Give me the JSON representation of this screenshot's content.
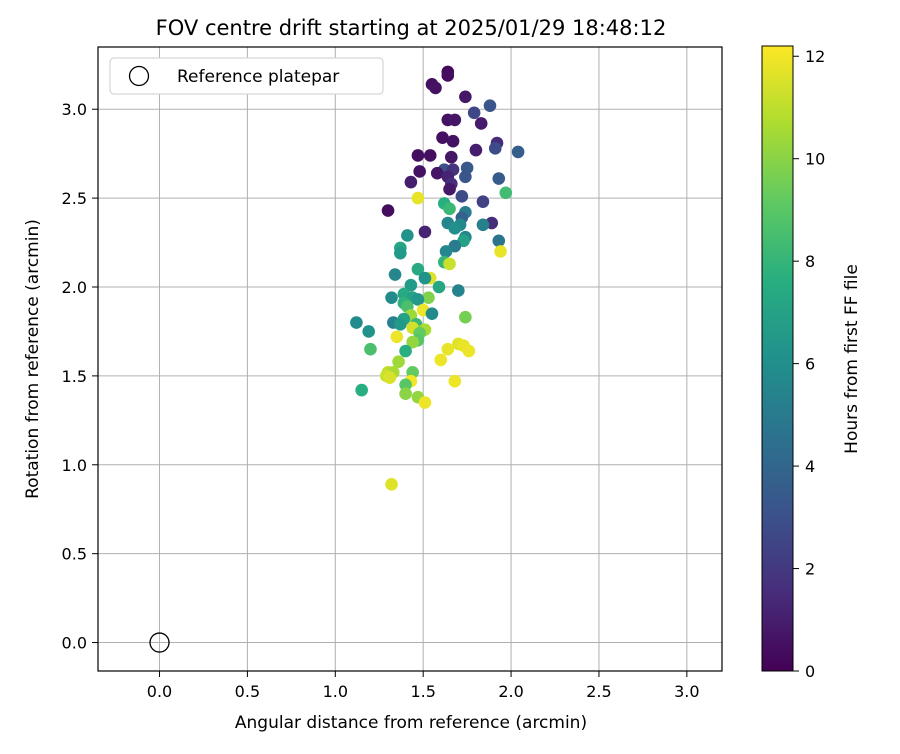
{
  "chart_data": {
    "type": "scatter",
    "title": "FOV centre drift starting at 2025/01/29 18:48:12",
    "xlabel": "Angular distance from reference (arcmin)",
    "ylabel": "Rotation from reference (arcmin)",
    "colorbar_label": "Hours from first FF file",
    "xlim": [
      -0.35,
      3.2
    ],
    "ylim": [
      -0.16,
      3.35
    ],
    "x_ticks": [
      "0.0",
      "0.5",
      "1.0",
      "1.5",
      "2.0",
      "2.5",
      "3.0"
    ],
    "y_ticks": [
      "0.0",
      "0.5",
      "1.0",
      "1.5",
      "2.0",
      "2.5",
      "3.0"
    ],
    "colorbar_range": [
      0,
      12.2
    ],
    "colorbar_ticks": [
      "0",
      "2",
      "4",
      "6",
      "8",
      "10",
      "12"
    ],
    "colormap": "viridis",
    "grid": true,
    "legend": {
      "placement": "top-left",
      "entries": [
        "Reference platepar"
      ]
    },
    "reference_point": {
      "x": 0.0,
      "y": 0.0
    },
    "points": [
      {
        "x": 1.64,
        "y": 3.21,
        "h": 0.3
      },
      {
        "x": 1.64,
        "y": 3.19,
        "h": 0.4
      },
      {
        "x": 1.55,
        "y": 3.14,
        "h": 0.5
      },
      {
        "x": 1.57,
        "y": 3.12,
        "h": 0.6
      },
      {
        "x": 1.74,
        "y": 3.07,
        "h": 0.8
      },
      {
        "x": 1.88,
        "y": 3.02,
        "h": 3.2
      },
      {
        "x": 1.79,
        "y": 2.98,
        "h": 2.6
      },
      {
        "x": 1.64,
        "y": 2.94,
        "h": 0.6
      },
      {
        "x": 1.68,
        "y": 2.94,
        "h": 0.7
      },
      {
        "x": 1.83,
        "y": 2.92,
        "h": 0.9
      },
      {
        "x": 1.61,
        "y": 2.84,
        "h": 0.5
      },
      {
        "x": 1.67,
        "y": 2.82,
        "h": 0.6
      },
      {
        "x": 1.92,
        "y": 2.81,
        "h": 1.5
      },
      {
        "x": 1.91,
        "y": 2.78,
        "h": 2.8
      },
      {
        "x": 1.8,
        "y": 2.77,
        "h": 1.0
      },
      {
        "x": 2.04,
        "y": 2.76,
        "h": 3.6
      },
      {
        "x": 1.47,
        "y": 2.74,
        "h": 0.4
      },
      {
        "x": 1.54,
        "y": 2.74,
        "h": 0.5
      },
      {
        "x": 1.66,
        "y": 2.73,
        "h": 0.7
      },
      {
        "x": 1.62,
        "y": 2.66,
        "h": 3.0
      },
      {
        "x": 1.67,
        "y": 2.66,
        "h": 1.8
      },
      {
        "x": 1.75,
        "y": 2.67,
        "h": 3.4
      },
      {
        "x": 1.48,
        "y": 2.65,
        "h": 0.6
      },
      {
        "x": 1.58,
        "y": 2.64,
        "h": 0.7
      },
      {
        "x": 1.64,
        "y": 2.62,
        "h": 1.2
      },
      {
        "x": 1.74,
        "y": 2.62,
        "h": 3.2
      },
      {
        "x": 1.93,
        "y": 2.61,
        "h": 3.5
      },
      {
        "x": 1.43,
        "y": 2.59,
        "h": 1.0
      },
      {
        "x": 1.66,
        "y": 2.58,
        "h": 1.6
      },
      {
        "x": 1.65,
        "y": 2.55,
        "h": 0.8
      },
      {
        "x": 1.72,
        "y": 2.51,
        "h": 2.8
      },
      {
        "x": 1.47,
        "y": 2.5,
        "h": 11.8
      },
      {
        "x": 1.97,
        "y": 2.53,
        "h": 8.4
      },
      {
        "x": 1.84,
        "y": 2.48,
        "h": 2.4
      },
      {
        "x": 1.62,
        "y": 2.47,
        "h": 7.6
      },
      {
        "x": 1.65,
        "y": 2.44,
        "h": 8.2
      },
      {
        "x": 1.3,
        "y": 2.43,
        "h": 0.4
      },
      {
        "x": 1.74,
        "y": 2.42,
        "h": 5.0
      },
      {
        "x": 1.72,
        "y": 2.39,
        "h": 3.8
      },
      {
        "x": 1.89,
        "y": 2.36,
        "h": 1.5
      },
      {
        "x": 1.64,
        "y": 2.36,
        "h": 5.5
      },
      {
        "x": 1.71,
        "y": 2.35,
        "h": 5.6
      },
      {
        "x": 1.84,
        "y": 2.35,
        "h": 5.3
      },
      {
        "x": 1.68,
        "y": 2.33,
        "h": 6.0
      },
      {
        "x": 1.51,
        "y": 2.31,
        "h": 1.2
      },
      {
        "x": 1.41,
        "y": 2.29,
        "h": 6.2
      },
      {
        "x": 1.74,
        "y": 2.28,
        "h": 5.6
      },
      {
        "x": 1.73,
        "y": 2.26,
        "h": 7.0
      },
      {
        "x": 1.93,
        "y": 2.26,
        "h": 4.6
      },
      {
        "x": 1.68,
        "y": 2.23,
        "h": 5.0
      },
      {
        "x": 1.37,
        "y": 2.22,
        "h": 7.2
      },
      {
        "x": 1.63,
        "y": 2.2,
        "h": 5.6
      },
      {
        "x": 1.94,
        "y": 2.2,
        "h": 11.8
      },
      {
        "x": 1.37,
        "y": 2.19,
        "h": 6.5
      },
      {
        "x": 1.62,
        "y": 2.14,
        "h": 8.0
      },
      {
        "x": 1.65,
        "y": 2.13,
        "h": 11.2
      },
      {
        "x": 1.47,
        "y": 2.1,
        "h": 7.4
      },
      {
        "x": 1.34,
        "y": 2.07,
        "h": 5.6
      },
      {
        "x": 1.54,
        "y": 2.05,
        "h": 11.6
      },
      {
        "x": 1.51,
        "y": 2.05,
        "h": 6.2
      },
      {
        "x": 1.43,
        "y": 2.01,
        "h": 6.6
      },
      {
        "x": 1.59,
        "y": 2.0,
        "h": 7.2
      },
      {
        "x": 1.7,
        "y": 1.98,
        "h": 5.4
      },
      {
        "x": 1.39,
        "y": 1.96,
        "h": 7.4
      },
      {
        "x": 1.44,
        "y": 1.94,
        "h": 7.0
      },
      {
        "x": 1.32,
        "y": 1.94,
        "h": 5.8
      },
      {
        "x": 1.53,
        "y": 1.94,
        "h": 9.8
      },
      {
        "x": 1.47,
        "y": 1.93,
        "h": 6.4
      },
      {
        "x": 1.39,
        "y": 1.91,
        "h": 7.8
      },
      {
        "x": 1.41,
        "y": 1.89,
        "h": 8.6
      },
      {
        "x": 1.5,
        "y": 1.87,
        "h": 11.9
      },
      {
        "x": 1.55,
        "y": 1.85,
        "h": 5.8
      },
      {
        "x": 1.43,
        "y": 1.84,
        "h": 10.4
      },
      {
        "x": 1.74,
        "y": 1.83,
        "h": 9.6
      },
      {
        "x": 1.39,
        "y": 1.82,
        "h": 7.0
      },
      {
        "x": 1.12,
        "y": 1.8,
        "h": 5.8
      },
      {
        "x": 1.33,
        "y": 1.8,
        "h": 5.4
      },
      {
        "x": 1.46,
        "y": 1.79,
        "h": 8.2
      },
      {
        "x": 1.37,
        "y": 1.79,
        "h": 6.5
      },
      {
        "x": 1.44,
        "y": 1.77,
        "h": 11.4
      },
      {
        "x": 1.51,
        "y": 1.76,
        "h": 10.6
      },
      {
        "x": 1.19,
        "y": 1.75,
        "h": 6.2
      },
      {
        "x": 1.48,
        "y": 1.74,
        "h": 9.2
      },
      {
        "x": 1.35,
        "y": 1.72,
        "h": 11.9
      },
      {
        "x": 1.47,
        "y": 1.7,
        "h": 9.0
      },
      {
        "x": 1.44,
        "y": 1.69,
        "h": 10.2
      },
      {
        "x": 1.7,
        "y": 1.68,
        "h": 11.6
      },
      {
        "x": 1.73,
        "y": 1.67,
        "h": 11.8
      },
      {
        "x": 1.64,
        "y": 1.65,
        "h": 11.8
      },
      {
        "x": 1.2,
        "y": 1.65,
        "h": 8.6
      },
      {
        "x": 1.4,
        "y": 1.64,
        "h": 7.6
      },
      {
        "x": 1.76,
        "y": 1.64,
        "h": 11.9
      },
      {
        "x": 1.6,
        "y": 1.59,
        "h": 11.9
      },
      {
        "x": 1.36,
        "y": 1.58,
        "h": 10.4
      },
      {
        "x": 1.3,
        "y": 1.52,
        "h": 11.0
      },
      {
        "x": 1.33,
        "y": 1.52,
        "h": 10.6
      },
      {
        "x": 1.44,
        "y": 1.52,
        "h": 9.2
      },
      {
        "x": 1.29,
        "y": 1.5,
        "h": 11.2
      },
      {
        "x": 1.31,
        "y": 1.49,
        "h": 11.5
      },
      {
        "x": 1.68,
        "y": 1.47,
        "h": 11.9
      },
      {
        "x": 1.43,
        "y": 1.47,
        "h": 12.0
      },
      {
        "x": 1.4,
        "y": 1.45,
        "h": 9.0
      },
      {
        "x": 1.15,
        "y": 1.42,
        "h": 7.6
      },
      {
        "x": 1.4,
        "y": 1.4,
        "h": 10.0
      },
      {
        "x": 1.47,
        "y": 1.38,
        "h": 10.2
      },
      {
        "x": 1.51,
        "y": 1.35,
        "h": 11.9
      },
      {
        "x": 1.32,
        "y": 0.89,
        "h": 11.6
      }
    ]
  }
}
